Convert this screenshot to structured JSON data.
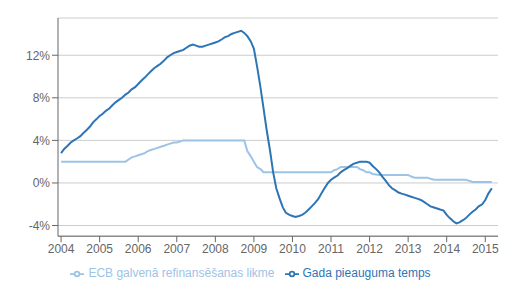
{
  "chart_data": {
    "type": "line",
    "x": [
      2004.0,
      2004.08,
      2004.17,
      2004.25,
      2004.33,
      2004.42,
      2004.5,
      2004.58,
      2004.67,
      2004.75,
      2004.83,
      2004.92,
      2005.0,
      2005.08,
      2005.17,
      2005.25,
      2005.33,
      2005.42,
      2005.5,
      2005.58,
      2005.67,
      2005.75,
      2005.83,
      2005.92,
      2006.0,
      2006.08,
      2006.17,
      2006.25,
      2006.33,
      2006.42,
      2006.5,
      2006.58,
      2006.67,
      2006.75,
      2006.83,
      2006.92,
      2007.0,
      2007.08,
      2007.17,
      2007.25,
      2007.33,
      2007.42,
      2007.5,
      2007.58,
      2007.67,
      2007.75,
      2007.83,
      2007.92,
      2008.0,
      2008.08,
      2008.17,
      2008.25,
      2008.33,
      2008.42,
      2008.5,
      2008.58,
      2008.67,
      2008.75,
      2008.83,
      2008.92,
      2009.0,
      2009.08,
      2009.17,
      2009.25,
      2009.33,
      2009.42,
      2009.5,
      2009.58,
      2009.67,
      2009.75,
      2009.83,
      2009.92,
      2010.0,
      2010.08,
      2010.17,
      2010.25,
      2010.33,
      2010.42,
      2010.5,
      2010.58,
      2010.67,
      2010.75,
      2010.83,
      2010.92,
      2011.0,
      2011.08,
      2011.17,
      2011.25,
      2011.33,
      2011.42,
      2011.5,
      2011.58,
      2011.67,
      2011.75,
      2011.83,
      2011.92,
      2012.0,
      2012.08,
      2012.17,
      2012.25,
      2012.33,
      2012.42,
      2012.5,
      2012.58,
      2012.67,
      2012.75,
      2012.83,
      2012.92,
      2013.0,
      2013.08,
      2013.17,
      2013.25,
      2013.33,
      2013.42,
      2013.5,
      2013.58,
      2013.67,
      2013.75,
      2013.83,
      2013.92,
      2014.0,
      2014.08,
      2014.17,
      2014.25,
      2014.33,
      2014.42,
      2014.5,
      2014.58,
      2014.67,
      2014.75,
      2014.83,
      2014.92,
      2015.0,
      2015.08,
      2015.17
    ],
    "series": [
      {
        "name": "ECB galvenā refinansēšanas likme",
        "color": "#9dc3e6",
        "values": [
          0.02,
          0.02,
          0.02,
          0.02,
          0.02,
          0.02,
          0.02,
          0.02,
          0.02,
          0.02,
          0.02,
          0.02,
          0.02,
          0.02,
          0.02,
          0.02,
          0.02,
          0.02,
          0.02,
          0.02,
          0.02,
          0.022,
          0.024,
          0.025,
          0.026,
          0.027,
          0.028,
          0.03,
          0.031,
          0.032,
          0.033,
          0.034,
          0.035,
          0.036,
          0.037,
          0.038,
          0.038,
          0.039,
          0.04,
          0.04,
          0.04,
          0.04,
          0.04,
          0.04,
          0.04,
          0.04,
          0.04,
          0.04,
          0.04,
          0.04,
          0.04,
          0.04,
          0.04,
          0.04,
          0.04,
          0.04,
          0.04,
          0.04,
          0.03,
          0.025,
          0.02,
          0.015,
          0.013,
          0.01,
          0.01,
          0.01,
          0.01,
          0.01,
          0.01,
          0.01,
          0.01,
          0.01,
          0.01,
          0.01,
          0.01,
          0.01,
          0.01,
          0.01,
          0.01,
          0.01,
          0.01,
          0.01,
          0.01,
          0.01,
          0.01,
          0.012,
          0.013,
          0.015,
          0.015,
          0.015,
          0.015,
          0.015,
          0.015,
          0.013,
          0.012,
          0.01,
          0.01,
          0.0085,
          0.008,
          0.0075,
          0.0075,
          0.0075,
          0.0075,
          0.0075,
          0.0075,
          0.0075,
          0.0075,
          0.0075,
          0.0075,
          0.006,
          0.005,
          0.005,
          0.005,
          0.005,
          0.005,
          0.004,
          0.003,
          0.003,
          0.003,
          0.003,
          0.003,
          0.003,
          0.003,
          0.003,
          0.003,
          0.003,
          0.003,
          0.002,
          0.001,
          0.001,
          0.001,
          0.001,
          0.001,
          0.001,
          0.001
        ]
      },
      {
        "name": "Gada pieauguma temps",
        "color": "#2e75b6",
        "values": [
          0.028,
          0.032,
          0.035,
          0.038,
          0.04,
          0.042,
          0.044,
          0.047,
          0.05,
          0.053,
          0.057,
          0.06,
          0.063,
          0.065,
          0.068,
          0.07,
          0.073,
          0.076,
          0.078,
          0.08,
          0.083,
          0.085,
          0.088,
          0.09,
          0.093,
          0.096,
          0.099,
          0.102,
          0.105,
          0.108,
          0.11,
          0.112,
          0.115,
          0.118,
          0.12,
          0.122,
          0.123,
          0.124,
          0.125,
          0.127,
          0.129,
          0.13,
          0.129,
          0.128,
          0.128,
          0.129,
          0.13,
          0.131,
          0.132,
          0.133,
          0.135,
          0.137,
          0.138,
          0.14,
          0.141,
          0.142,
          0.143,
          0.141,
          0.138,
          0.133,
          0.126,
          0.11,
          0.09,
          0.07,
          0.05,
          0.03,
          0.01,
          -0.005,
          -0.015,
          -0.023,
          -0.028,
          -0.03,
          -0.031,
          -0.032,
          -0.031,
          -0.03,
          -0.028,
          -0.025,
          -0.022,
          -0.019,
          -0.015,
          -0.01,
          -0.005,
          0.0,
          0.003,
          0.005,
          0.007,
          0.01,
          0.012,
          0.014,
          0.016,
          0.018,
          0.019,
          0.02,
          0.02,
          0.02,
          0.019,
          0.016,
          0.013,
          0.01,
          0.006,
          0.002,
          -0.002,
          -0.005,
          -0.007,
          -0.009,
          -0.01,
          -0.011,
          -0.012,
          -0.013,
          -0.014,
          -0.015,
          -0.016,
          -0.018,
          -0.02,
          -0.022,
          -0.023,
          -0.024,
          -0.025,
          -0.026,
          -0.03,
          -0.033,
          -0.036,
          -0.038,
          -0.037,
          -0.035,
          -0.033,
          -0.03,
          -0.027,
          -0.025,
          -0.022,
          -0.02,
          -0.016,
          -0.01,
          -0.005
        ]
      }
    ],
    "xlim": [
      2003.92,
      2015.33
    ],
    "xticks": [
      2004,
      2005,
      2006,
      2007,
      2008,
      2009,
      2010,
      2011,
      2012,
      2013,
      2014,
      2015
    ],
    "ylim": [
      -0.05,
      0.155
    ],
    "yticks": [
      {
        "value": -0.04,
        "label": "-4%"
      },
      {
        "value": 0.0,
        "label": "0%"
      },
      {
        "value": 0.04,
        "label": "4%"
      },
      {
        "value": 0.08,
        "label": "8%"
      },
      {
        "value": 0.12,
        "label": "12%"
      }
    ],
    "grid": true,
    "legend": "bottom"
  }
}
